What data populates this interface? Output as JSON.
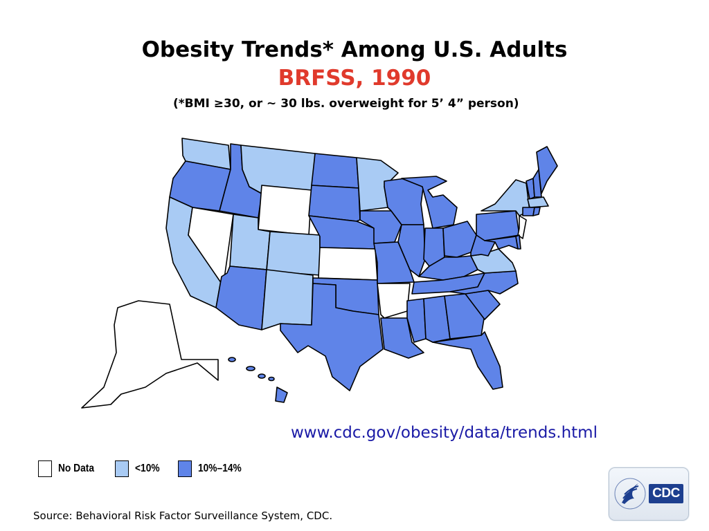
{
  "title": "Obesity Trends* Among U.S. Adults",
  "subtitle": "BRFSS, 1990",
  "subtitle_color": "#e03a2c",
  "note": "(*BMI ≥30, or ~ 30 lbs. overweight for 5’ 4” person)",
  "url": "www.cdc.gov/obesity/data/trends.html",
  "url_color": "#1a1aa6",
  "legend": [
    {
      "label": "No Data",
      "color": "#ffffff"
    },
    {
      "label": "<10%",
      "color": "#a9cbf4"
    },
    {
      "label": "10%–14%",
      "color": "#5f84e8"
    }
  ],
  "source": "Source: Behavioral Risk Factor Surveillance System, CDC.",
  "logo": {
    "text": "CDC",
    "icon": "hhs-eagle-icon"
  },
  "states": {
    "no_data": [
      "NV",
      "WY",
      "KS",
      "AR",
      "NJ",
      "AK"
    ],
    "lt_10": [
      "WA",
      "CA",
      "MT",
      "UT",
      "CO",
      "NM",
      "MN",
      "NY",
      "VA",
      "MA"
    ],
    "p10_14": [
      "OR",
      "ID",
      "AZ",
      "ND",
      "SD",
      "NE",
      "OK",
      "TX",
      "IA",
      "MO",
      "LA",
      "WI",
      "IL",
      "MI",
      "IN",
      "OH",
      "KY",
      "TN",
      "MS",
      "AL",
      "GA",
      "FL",
      "SC",
      "NC",
      "WV",
      "PA",
      "MD",
      "DE",
      "VT",
      "NH",
      "ME",
      "CT",
      "RI",
      "HI"
    ]
  }
}
